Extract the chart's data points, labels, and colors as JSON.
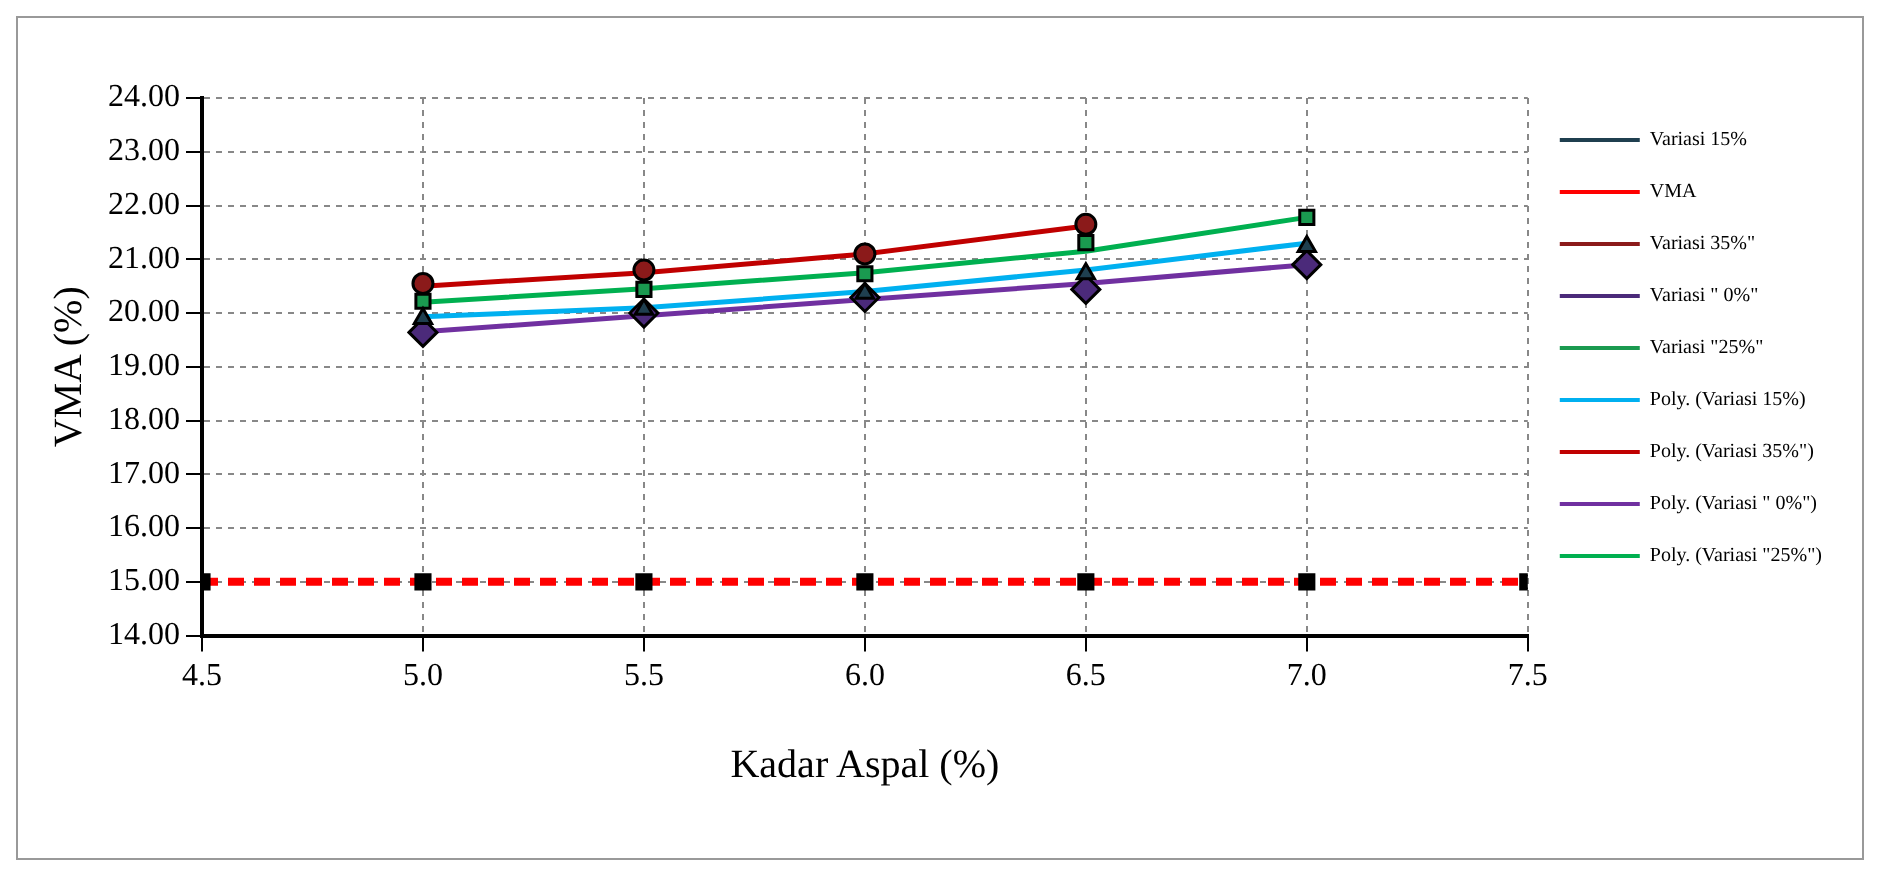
{
  "chart_data": {
    "type": "line",
    "xlabel": "Kadar Aspal (%)",
    "ylabel": "VMA (%)",
    "xlim": [
      4.5,
      7.5
    ],
    "xticks": [
      {
        "value": 4.5,
        "label": "4.5"
      },
      {
        "value": 5,
        "label": "5.0"
      },
      {
        "value": 5.5,
        "label": "5.5"
      },
      {
        "value": 6,
        "label": "6.0"
      },
      {
        "value": 6.5,
        "label": "6.5"
      },
      {
        "value": 7,
        "label": "7.0"
      },
      {
        "value": 7.5,
        "label": "7.5"
      }
    ],
    "ylim": [
      14,
      24
    ],
    "yticks": [
      {
        "value": 14,
        "label": "14.00"
      },
      {
        "value": 15,
        "label": "15.00"
      },
      {
        "value": 16,
        "label": "16.00"
      },
      {
        "value": 17,
        "label": "17.00"
      },
      {
        "value": 18,
        "label": "18.00"
      },
      {
        "value": 19,
        "label": "19.00"
      },
      {
        "value": 20,
        "label": "20.00"
      },
      {
        "value": 21,
        "label": "21.00"
      },
      {
        "value": 22,
        "label": "22.00"
      },
      {
        "value": 23,
        "label": "23.00"
      },
      {
        "value": 24,
        "label": "24.00"
      }
    ],
    "grid": true,
    "legend": "right",
    "series": [
      {
        "name": "Variasi 15%",
        "type": "scatter",
        "marker": "triangle",
        "color": "#1f3f4f",
        "x": [
          5,
          5.5,
          6,
          6.5,
          7
        ],
        "values": [
          19.9,
          20.07,
          20.37,
          20.73,
          21.24
        ]
      },
      {
        "name": "VMA",
        "type": "line",
        "marker": "square",
        "line_style": "dashed",
        "color": "#ff0000",
        "x": [
          4.5,
          5,
          5.5,
          6,
          6.5,
          7,
          7.5
        ],
        "values": [
          15,
          15,
          15,
          15,
          15,
          15,
          15
        ]
      },
      {
        "name": "Variasi 35%\"",
        "type": "scatter",
        "marker": "circle",
        "color": "#8b1a1a",
        "x": [
          5,
          5.5,
          6,
          6.5
        ],
        "values": [
          20.55,
          20.8,
          21.1,
          21.65
        ]
      },
      {
        "name": "Variasi \" 0%\"",
        "type": "scatter",
        "marker": "diamond",
        "color": "#4b2a7a",
        "x": [
          5,
          5.5,
          6,
          6.5,
          7
        ],
        "values": [
          19.64,
          20,
          20.29,
          20.44,
          20.9
        ]
      },
      {
        "name": "Variasi \"25%\"",
        "type": "scatter",
        "marker": "square",
        "color": "#1a9a50",
        "x": [
          5,
          5.5,
          6,
          6.5,
          7
        ],
        "values": [
          20.22,
          20.44,
          20.73,
          21.31,
          21.78
        ]
      },
      {
        "name": "Poly. (Variasi 15%)",
        "type": "line",
        "marker": "none",
        "color": "#00b0f0",
        "x": [
          5,
          5.5,
          6,
          6.5,
          7
        ],
        "values": [
          19.93,
          20.1,
          20.4,
          20.8,
          21.3
        ]
      },
      {
        "name": "Poly. (Variasi 35%\")",
        "type": "line",
        "marker": "none",
        "color": "#c00000",
        "x": [
          5,
          5.5,
          6,
          6.5
        ],
        "values": [
          20.5,
          20.75,
          21.1,
          21.62
        ]
      },
      {
        "name": "Poly. (Variasi \" 0%\")",
        "type": "line",
        "marker": "none",
        "color": "#7030a0",
        "x": [
          5,
          5.5,
          6,
          6.5,
          7
        ],
        "values": [
          19.65,
          19.95,
          20.25,
          20.55,
          20.9
        ]
      },
      {
        "name": "Poly. (Variasi \"25%\")",
        "type": "line",
        "marker": "none",
        "color": "#00b050",
        "x": [
          5,
          5.5,
          6,
          6.5,
          7
        ],
        "values": [
          20.2,
          20.45,
          20.75,
          21.15,
          21.78
        ]
      }
    ]
  }
}
